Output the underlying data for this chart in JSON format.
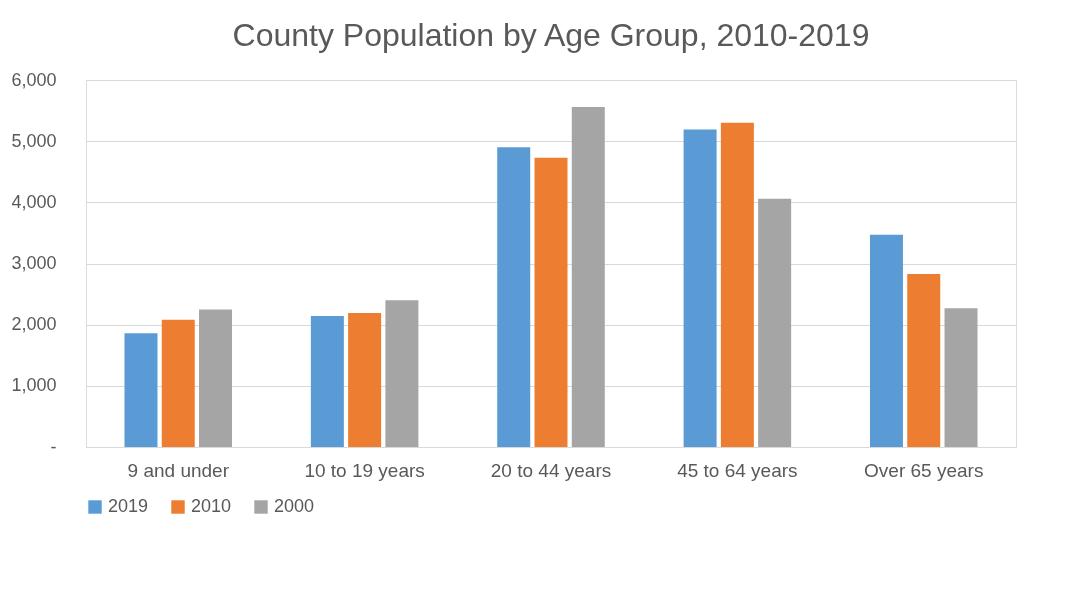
{
  "chart_data": {
    "type": "bar",
    "title": "County Population by Age Group, 2010-2019",
    "categories": [
      "9 and under",
      "10 to 19 years",
      "20 to 44 years",
      "45 to 64 years",
      "Over 65 years"
    ],
    "series": [
      {
        "name": "2019",
        "color": "#5b9bd5",
        "values": [
          1860,
          2140,
          4900,
          5190,
          3470
        ]
      },
      {
        "name": "2010",
        "color": "#ed7d31",
        "values": [
          2080,
          2190,
          4730,
          5300,
          2830
        ]
      },
      {
        "name": "2000",
        "color": "#a5a5a5",
        "values": [
          2250,
          2400,
          5560,
          4060,
          2270
        ]
      }
    ],
    "ylim": [
      0,
      6000
    ],
    "yticks": [
      {
        "value": 0,
        "label": "-"
      },
      {
        "value": 1000,
        "label": "1,000"
      },
      {
        "value": 2000,
        "label": "2,000"
      },
      {
        "value": 3000,
        "label": "3,000"
      },
      {
        "value": 4000,
        "label": "4,000"
      },
      {
        "value": 5000,
        "label": "5,000"
      },
      {
        "value": 6000,
        "label": "6,000"
      }
    ],
    "grid": "y",
    "legend": "bottom"
  }
}
